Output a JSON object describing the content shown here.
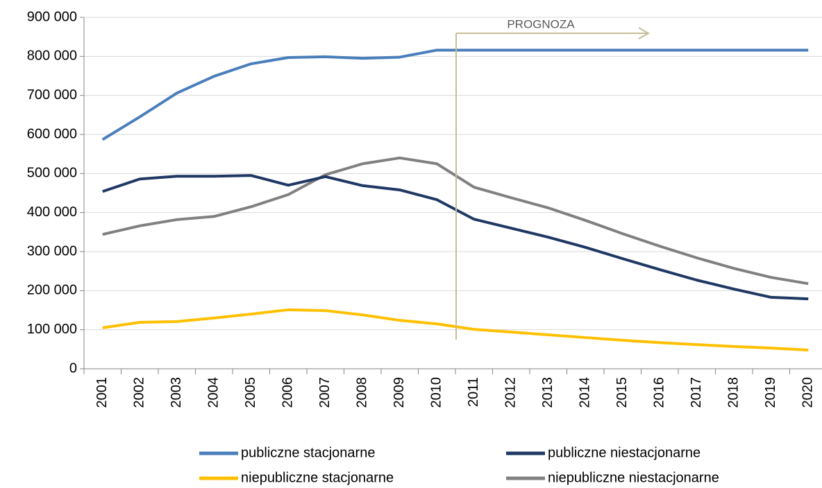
{
  "chart_data": {
    "type": "line",
    "categories": [
      "2001",
      "2002",
      "2003",
      "2004",
      "2005",
      "2006",
      "2007",
      "2008",
      "2009",
      "2010",
      "2011",
      "2012",
      "2013",
      "2014",
      "2015",
      "2016",
      "2017",
      "2018",
      "2019",
      "2020"
    ],
    "series": [
      {
        "name": "publiczne stacjonarne",
        "color": "#4a7ebb",
        "values": [
          587000,
          645000,
          706000,
          749000,
          781000,
          797000,
          799000,
          795000,
          798000,
          816000,
          816000,
          816000,
          816000,
          816000,
          816000,
          816000,
          816000,
          816000,
          816000,
          816000
        ]
      },
      {
        "name": "publiczne niestacjonarne",
        "color": "#1f3864",
        "values": [
          454000,
          486000,
          493000,
          493000,
          495000,
          470000,
          492000,
          469000,
          458000,
          433000,
          383000,
          360000,
          337000,
          311000,
          282000,
          254000,
          227000,
          204000,
          183000,
          179000
        ]
      },
      {
        "name": "niepubliczne stacjonarne",
        "color": "#ffc000",
        "values": [
          105000,
          119000,
          121000,
          130000,
          140000,
          151000,
          149000,
          138000,
          124000,
          115000,
          101000,
          94000,
          87000,
          80000,
          73000,
          67000,
          62000,
          57000,
          53000,
          48000
        ]
      },
      {
        "name": "niepubliczne niestacjonarne",
        "color": "#808080",
        "values": [
          344000,
          366000,
          382000,
          390000,
          415000,
          446000,
          497000,
          525000,
          540000,
          525000,
          465000,
          438000,
          412000,
          380000,
          346000,
          314000,
          284000,
          257000,
          234000,
          218000
        ]
      }
    ],
    "ylim": [
      0,
      900000
    ],
    "yticks": [
      0,
      {
        "value": 100000,
        "label": "100 000"
      },
      {
        "value": 200000,
        "label": "200 000"
      },
      {
        "value": 300000,
        "label": "300 000"
      },
      {
        "value": 400000,
        "label": "400 000"
      },
      {
        "value": 500000,
        "label": "500 000"
      },
      {
        "value": 600000,
        "label": "600 000"
      },
      {
        "value": 700000,
        "label": "700 000"
      },
      {
        "value": 800000,
        "label": "800 000"
      },
      {
        "value": 900000,
        "label": "900 000"
      }
    ],
    "annotation": "PROGNOZA",
    "grid": true,
    "legend": "bottom"
  }
}
